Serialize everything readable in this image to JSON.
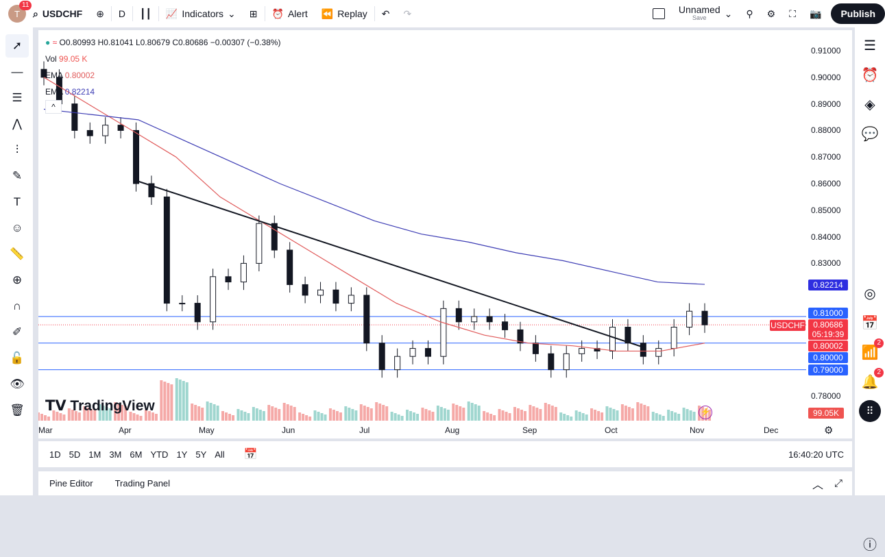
{
  "toolbar": {
    "avatar_letter": "T",
    "avatar_badge": "11",
    "symbol": "USDCHF",
    "interval": "D",
    "indicators": "Indicators",
    "alert": "Alert",
    "replay": "Replay",
    "layout_name": "Unnamed",
    "layout_save": "Save",
    "publish": "Publish"
  },
  "legend": {
    "ohlc": "O0.80993 H0.81041 L0.80679 C0.80686 −0.00307 (−0.38%)",
    "vol_label": "Vol",
    "vol_value": "99.05 K",
    "ema1_label": "EMA",
    "ema1_value": "0.80002",
    "ema2_label": "EMA",
    "ema2_value": "0.82214"
  },
  "colors": {
    "up": "#26a69a",
    "down": "#ef5350",
    "ema_fast": "#e05a5a",
    "ema_slow": "#3c3cb4",
    "hline": "#2962ff",
    "price_label": "#f23645"
  },
  "price_axis": [
    "0.91000",
    "0.90000",
    "0.89000",
    "0.88000",
    "0.87000",
    "0.86000",
    "0.85000",
    "0.84000",
    "0.83000",
    "0.78000"
  ],
  "price_labels": {
    "ema_slow": "0.82214",
    "level_081": "0.81000",
    "symbol": "USDCHF",
    "last": "0.80686",
    "countdown": "05:19:39",
    "ema_fast": "0.80002",
    "level_080": "0.80000",
    "level_079": "0.79000",
    "volume": "99.05K"
  },
  "time_axis": [
    "Mar",
    "Apr",
    "May",
    "Jun",
    "Jul",
    "Aug",
    "Sep",
    "Oct",
    "Nov",
    "Dec"
  ],
  "timeframes": [
    "1D",
    "5D",
    "1M",
    "3M",
    "6M",
    "YTD",
    "1Y",
    "5Y",
    "All"
  ],
  "clock": "16:40:20 UTC",
  "bottom_tabs": [
    "Pine Editor",
    "Trading Panel"
  ],
  "watermark": "TradingView",
  "right_badges": {
    "ideas": "2",
    "alerts": "2"
  },
  "chart_data": {
    "type": "candlestick",
    "x_months": [
      "Mar",
      "Apr",
      "May",
      "Jun",
      "Jul",
      "Aug",
      "Sep",
      "Oct",
      "Nov",
      "Dec"
    ],
    "ylim": [
      0.775,
      0.915
    ],
    "closes": [
      0.9,
      0.89,
      0.88,
      0.878,
      0.882,
      0.88,
      0.86,
      0.855,
      0.815,
      0.815,
      0.808,
      0.825,
      0.823,
      0.83,
      0.845,
      0.835,
      0.822,
      0.818,
      0.82,
      0.815,
      0.818,
      0.8,
      0.79,
      0.795,
      0.798,
      0.795,
      0.813,
      0.808,
      0.81,
      0.808,
      0.805,
      0.8,
      0.796,
      0.79,
      0.796,
      0.798,
      0.797,
      0.806,
      0.8,
      0.795,
      0.798,
      0.806,
      0.812,
      0.80686
    ],
    "ema_fast": [
      0.9,
      0.89,
      0.88,
      0.87,
      0.855,
      0.845,
      0.835,
      0.825,
      0.815,
      0.808,
      0.803,
      0.8,
      0.799,
      0.797,
      0.797,
      0.8
    ],
    "ema_slow": [
      0.888,
      0.886,
      0.884,
      0.876,
      0.868,
      0.86,
      0.853,
      0.846,
      0.841,
      0.838,
      0.834,
      0.831,
      0.827,
      0.823,
      0.8221
    ],
    "trendline": [
      0.861,
      0.7985
    ],
    "hlines": [
      0.81,
      0.8,
      0.79
    ]
  }
}
